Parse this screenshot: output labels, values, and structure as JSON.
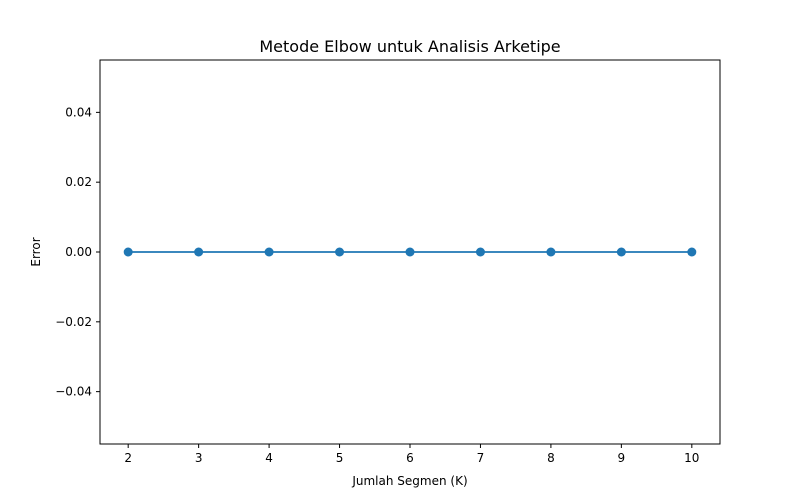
{
  "chart_data": {
    "type": "line",
    "title": "Metode Elbow untuk Analisis Arketipe",
    "xlabel": "Jumlah Segmen (K)",
    "ylabel": "Error",
    "x": [
      2,
      3,
      4,
      5,
      6,
      7,
      8,
      9,
      10
    ],
    "series": [
      {
        "values": [
          0,
          0,
          0,
          0,
          0,
          0,
          0,
          0,
          0
        ],
        "color": "#1f77b4",
        "marker": "circle"
      }
    ],
    "xlim": [
      1.6,
      10.4
    ],
    "ylim": [
      -0.055,
      0.055
    ],
    "xticks": [
      2,
      3,
      4,
      5,
      6,
      7,
      8,
      9,
      10
    ],
    "xtick_labels": [
      "2",
      "3",
      "4",
      "5",
      "6",
      "7",
      "8",
      "9",
      "10"
    ],
    "yticks": [
      -0.04,
      -0.02,
      0.0,
      0.02,
      0.04
    ],
    "ytick_labels": [
      "−0.04",
      "−0.02",
      "0.00",
      "0.02",
      "0.04"
    ],
    "grid": false,
    "legend": "none"
  }
}
